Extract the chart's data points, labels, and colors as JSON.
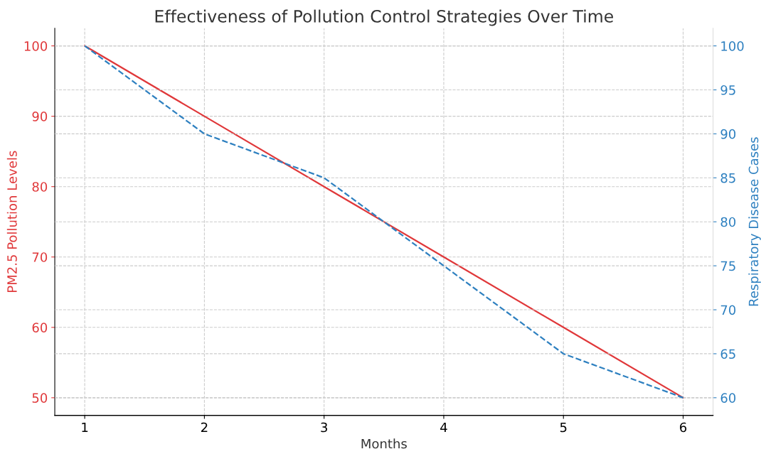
{
  "chart_data": {
    "type": "line",
    "title": "Effectiveness of Pollution Control Strategies Over Time",
    "xlabel": "Months",
    "ylabel": "PM2.5 Pollution Levels",
    "y2label": "Respiratory Disease Cases",
    "x": [
      1,
      2,
      3,
      4,
      5,
      6
    ],
    "series": [
      {
        "color": "#e0383a",
        "values": [
          100,
          90,
          80,
          70,
          60,
          50
        ],
        "line_style": "solid"
      },
      {
        "color": "#2e80c0",
        "values": [
          100,
          90,
          85,
          75,
          65,
          60
        ],
        "line_style": "dashed",
        "axis": "y2"
      }
    ],
    "xlim": [
      0.75,
      6.25
    ],
    "xticks": [
      1,
      2,
      3,
      4,
      5,
      6
    ],
    "ylim": [
      47.5,
      102.5
    ],
    "yticks": [
      50,
      60,
      70,
      80,
      90,
      100
    ],
    "y2lim": [
      58,
      102
    ],
    "y2ticks": [
      60,
      65,
      70,
      75,
      80,
      85,
      90,
      95,
      100
    ],
    "grid": true,
    "marker": "none"
  }
}
